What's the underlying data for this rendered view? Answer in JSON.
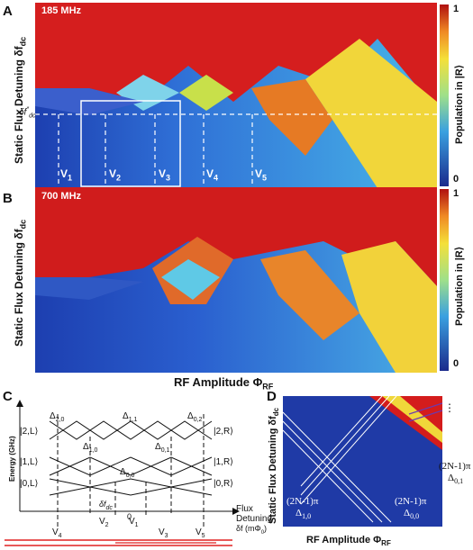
{
  "panel_a": {
    "letter": "A",
    "freq": "185 MHz",
    "y_label": "Static Flux Detuning δf",
    "y_label_sub": "dc",
    "marker_label": "δf",
    "marker_label_sup": "*",
    "marker_label_sub": "dc",
    "v_labels": [
      {
        "v": "V",
        "s": "1"
      },
      {
        "v": "V",
        "s": "2"
      },
      {
        "v": "V",
        "s": "3"
      },
      {
        "v": "V",
        "s": "4"
      },
      {
        "v": "V",
        "s": "5"
      }
    ],
    "colorbar_label": "Population in |R⟩",
    "colorbar_max": "1",
    "colorbar_min": "0"
  },
  "panel_b": {
    "letter": "B",
    "freq": "700 MHz",
    "y_label": "Static Flux Detuning δf",
    "y_label_sub": "dc",
    "x_label": "RF Amplitude Φ",
    "x_label_sub": "RF",
    "colorbar_label": "Population in |R⟩",
    "colorbar_max": "1",
    "colorbar_min": "0"
  },
  "panel_c": {
    "letter": "C",
    "energy_axis": "Energy (GHz)",
    "state_left": [
      "|2,L⟩",
      "|1,L⟩",
      "|0,L⟩"
    ],
    "state_right": [
      "|2,R⟩",
      "|1,R⟩",
      "|0,R⟩"
    ],
    "gaps": [
      {
        "d": "Δ",
        "s": "2,0"
      },
      {
        "d": "Δ",
        "s": "1,1"
      },
      {
        "d": "Δ",
        "s": "0,2"
      },
      {
        "d": "Δ",
        "s": "1,0"
      },
      {
        "d": "Δ",
        "s": "0,1"
      },
      {
        "d": "Δ",
        "s": "0,0"
      }
    ],
    "dc_label": "δf",
    "dc_sub": "dc",
    "origin_label": "0",
    "flux_label": [
      "Flux",
      "Detuning",
      "δf (mΦ",
      "0",
      ")"
    ],
    "v_labels": [
      {
        "v": "V",
        "s": "4"
      },
      {
        "v": "V",
        "s": "2"
      },
      {
        "v": "V",
        "s": "1"
      },
      {
        "v": "V",
        "s": "3"
      },
      {
        "v": "V",
        "s": "5"
      }
    ]
  },
  "panel_d": {
    "letter": "D",
    "y_label": "Static Flux Detuning δf",
    "y_label_sub": "dc",
    "x_label": "RF Amplitude Φ",
    "x_label_sub": "RF",
    "ellipsis": "⋮",
    "annotations": [
      {
        "phase": "(2N-1)π",
        "d": "Δ",
        "s": "0,1"
      },
      {
        "phase": "(2N-1)π",
        "d": "Δ",
        "s": "1,0"
      },
      {
        "phase": "(2N-1)π",
        "d": "Δ",
        "s": "0,0"
      }
    ]
  }
}
